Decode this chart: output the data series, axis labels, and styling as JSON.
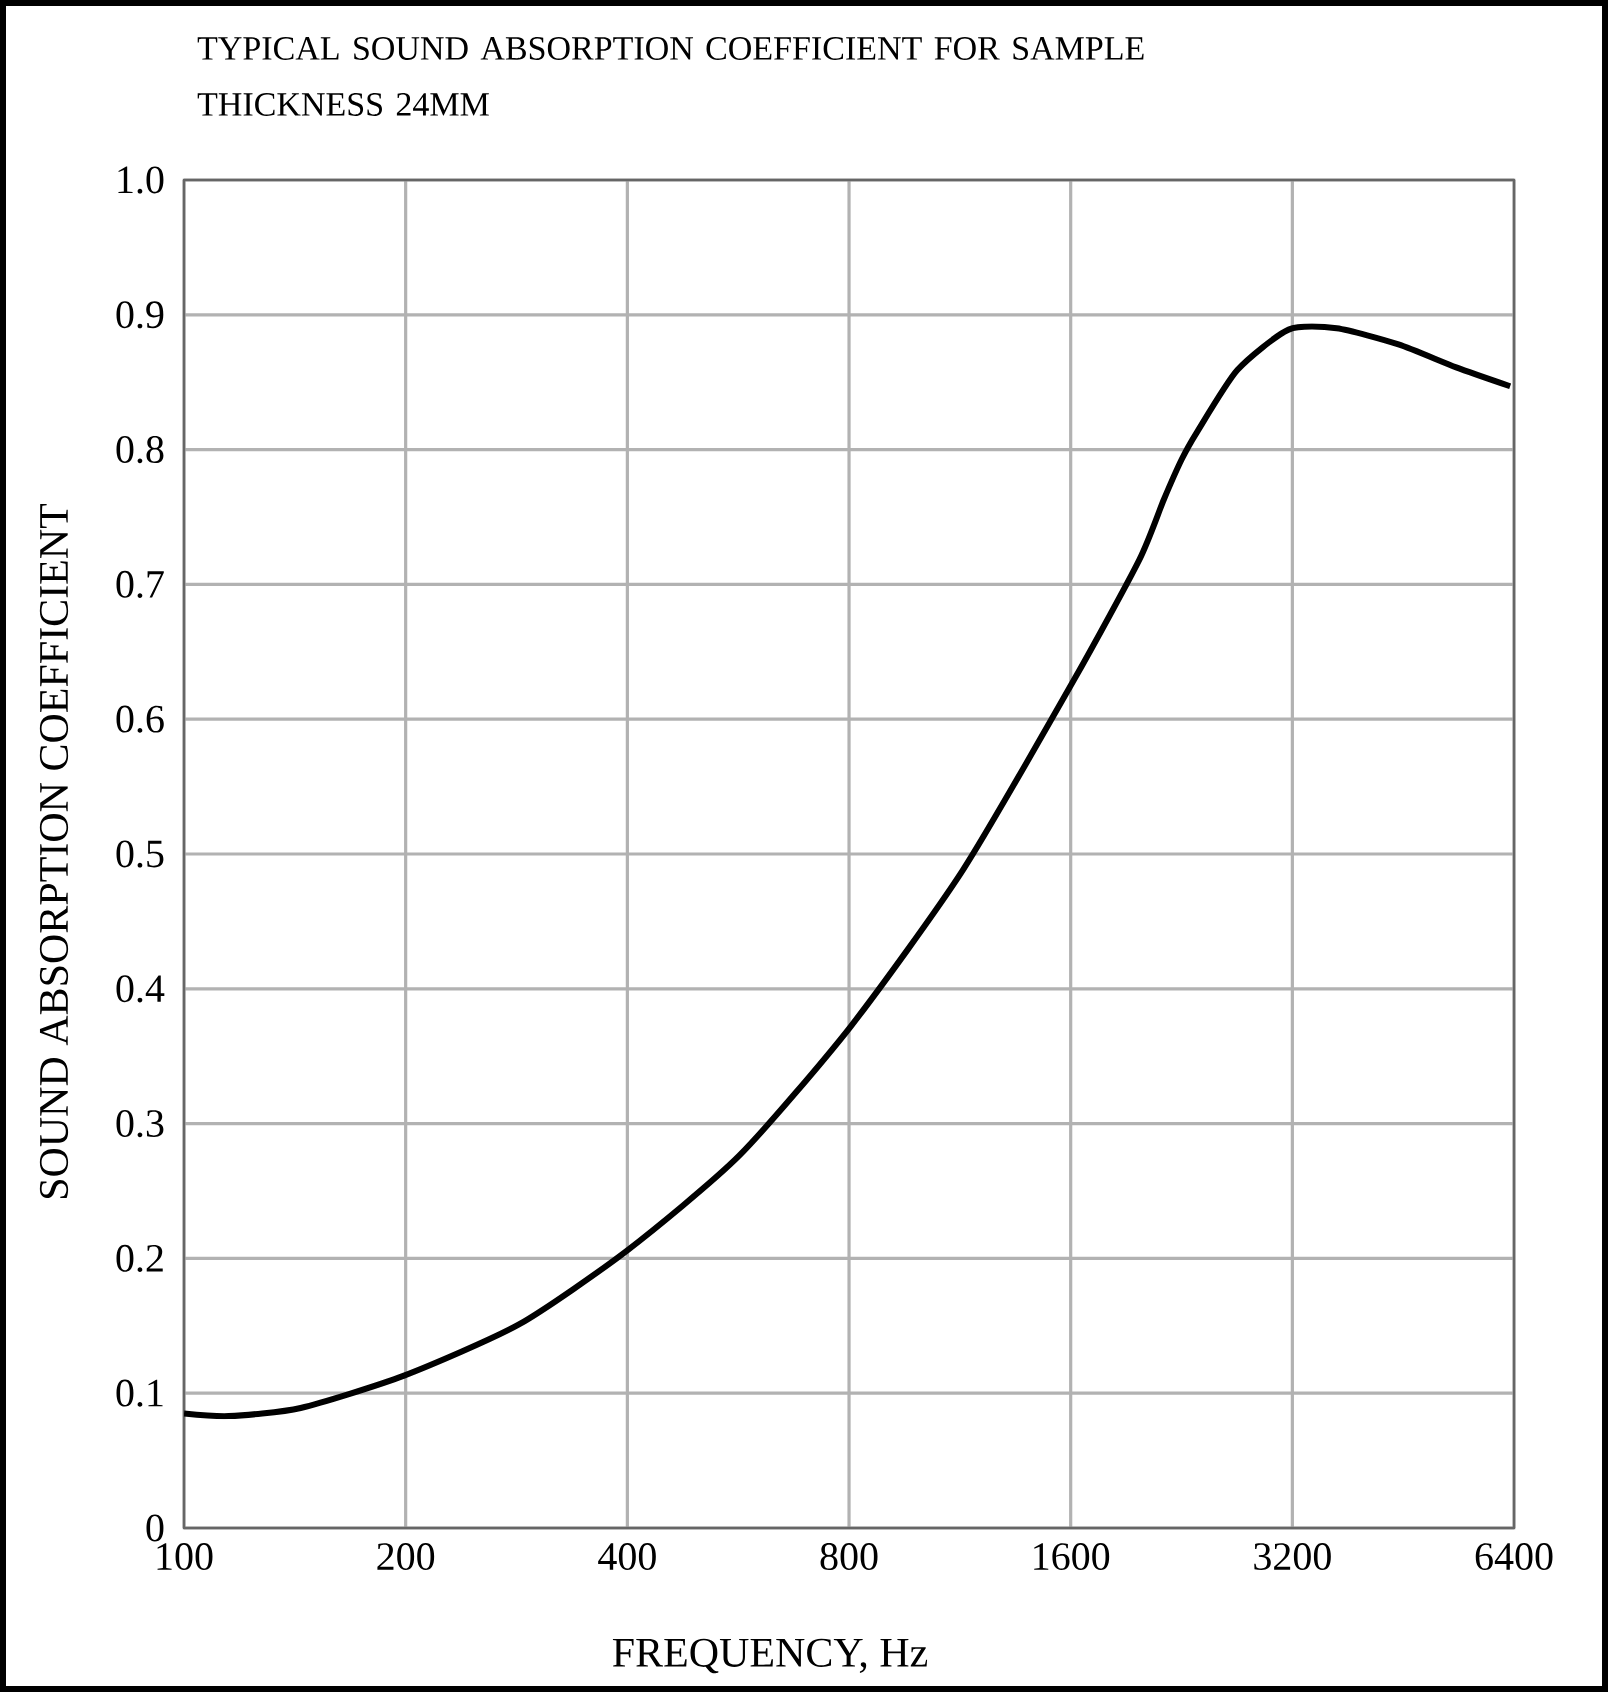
{
  "chart_data": {
    "type": "line",
    "title": "TYPICAL SOUND ABSORPTION COEFFICIENT FOR SAMPLE THICKNESS 24MM",
    "xlabel": "FREQUENCY, Hz",
    "ylabel": "SOUND ABSORPTION COEFFICIENT",
    "log": "x",
    "x": [
      100,
      115,
      144,
      199,
      285,
      400,
      567,
      804,
      1142,
      1616,
      1982,
      2141,
      2265,
      2375,
      2694,
      3163,
      3676,
      4459,
      5341,
      6323
    ],
    "series": [
      {
        "color": "#000000",
        "values": [
          0.085,
          0.083,
          0.089,
          0.113,
          0.151,
          0.206,
          0.276,
          0.372,
          0.488,
          0.629,
          0.718,
          0.763,
          0.793,
          0.813,
          0.859,
          0.889,
          0.89,
          0.878,
          0.861,
          0.847
        ]
      }
    ],
    "xlim": [
      100,
      6400
    ],
    "xticks": [
      100,
      200,
      400,
      800,
      1600,
      3200,
      6400
    ],
    "ylim": [
      0,
      1
    ],
    "yticks": [
      0,
      0.1,
      0.2,
      0.3,
      0.4,
      0.5,
      0.6,
      0.7,
      0.8,
      0.9,
      {
        "value": 1,
        "label": "1.0"
      }
    ],
    "grid": true,
    "marker": "none",
    "line_style": "solid"
  }
}
